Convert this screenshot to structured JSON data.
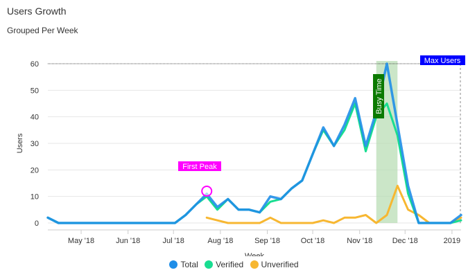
{
  "header": {
    "title": "Users Growth",
    "subtitle": "Grouped Per Week"
  },
  "colors": {
    "total": "#1f8ee8",
    "verified": "#19dd91",
    "unverified": "#f7b731",
    "first_peak": "#ff00ff",
    "busy_time": "#0b7a00",
    "max_users": "#0000ff"
  },
  "chart_data": {
    "type": "line",
    "title": "Users Growth",
    "subtitle": "Grouped Per Week",
    "xlabel": "Week",
    "ylabel": "Users",
    "ylim": [
      0,
      60
    ],
    "yticks": [
      0,
      10,
      20,
      30,
      40,
      50,
      60
    ],
    "xlim": [
      "2018-04-09",
      "2019-01-07"
    ],
    "xticks": [
      {
        "label": "May '18",
        "date": "2018-05-01"
      },
      {
        "label": "Jun '18",
        "date": "2018-06-01"
      },
      {
        "label": "Jul '18",
        "date": "2018-07-01"
      },
      {
        "label": "Aug '18",
        "date": "2018-08-01"
      },
      {
        "label": "Sep '18",
        "date": "2018-09-01"
      },
      {
        "label": "Oct '18",
        "date": "2018-10-01"
      },
      {
        "label": "Nov '18",
        "date": "2018-11-01"
      },
      {
        "label": "Dec '18",
        "date": "2018-12-01"
      },
      {
        "label": "2019",
        "date": "2019-01-01"
      }
    ],
    "x": [
      "2018-04-09",
      "2018-04-16",
      "2018-04-23",
      "2018-04-30",
      "2018-05-07",
      "2018-05-14",
      "2018-05-21",
      "2018-05-28",
      "2018-06-04",
      "2018-06-11",
      "2018-06-18",
      "2018-06-25",
      "2018-07-02",
      "2018-07-09",
      "2018-07-16",
      "2018-07-23",
      "2018-07-30",
      "2018-08-06",
      "2018-08-13",
      "2018-08-20",
      "2018-08-27",
      "2018-09-03",
      "2018-09-10",
      "2018-09-17",
      "2018-09-24",
      "2018-10-01",
      "2018-10-08",
      "2018-10-15",
      "2018-10-22",
      "2018-10-29",
      "2018-11-05",
      "2018-11-12",
      "2018-11-19",
      "2018-11-26",
      "2018-12-03",
      "2018-12-10",
      "2018-12-17",
      "2018-12-24",
      "2018-12-31",
      "2019-01-07"
    ],
    "series": [
      {
        "name": "Total",
        "key": "total",
        "values": [
          2,
          0,
          0,
          0,
          0,
          0,
          0,
          0,
          0,
          0,
          0,
          0,
          0,
          3,
          7,
          11,
          6,
          9,
          5,
          5,
          4,
          10,
          9,
          13,
          16,
          26,
          36,
          29,
          37,
          47,
          29,
          42,
          60,
          37,
          14,
          0,
          0,
          0,
          0,
          3
        ]
      },
      {
        "name": "Verified",
        "key": "verified",
        "values": [
          2,
          0,
          0,
          0,
          0,
          0,
          0,
          0,
          0,
          0,
          0,
          0,
          0,
          3,
          7,
          10,
          5,
          9,
          5,
          5,
          4,
          8,
          9,
          13,
          16,
          26,
          35,
          29,
          35,
          45,
          27,
          40,
          45,
          33,
          11,
          0,
          0,
          0,
          0,
          1
        ]
      },
      {
        "name": "Unverified",
        "key": "unverified",
        "values": [
          null,
          null,
          null,
          null,
          null,
          null,
          null,
          null,
          null,
          null,
          null,
          null,
          null,
          null,
          null,
          2,
          1,
          0,
          0,
          0,
          0,
          2,
          0,
          0,
          0,
          0,
          1,
          0,
          2,
          2,
          3,
          0,
          3,
          14,
          5,
          3,
          0,
          0,
          0,
          2
        ]
      }
    ],
    "annotations": {
      "first_peak": {
        "label": "First Peak",
        "x": "2018-07-23",
        "y": 12
      },
      "busy_time": {
        "label": "Busy Time",
        "x_from": "2018-11-12",
        "x_to": "2018-11-26"
      },
      "max_users": {
        "label": "Max Users",
        "y": 60,
        "x": "2019-01-07"
      }
    },
    "legend": "bottom-center",
    "grid": true
  }
}
